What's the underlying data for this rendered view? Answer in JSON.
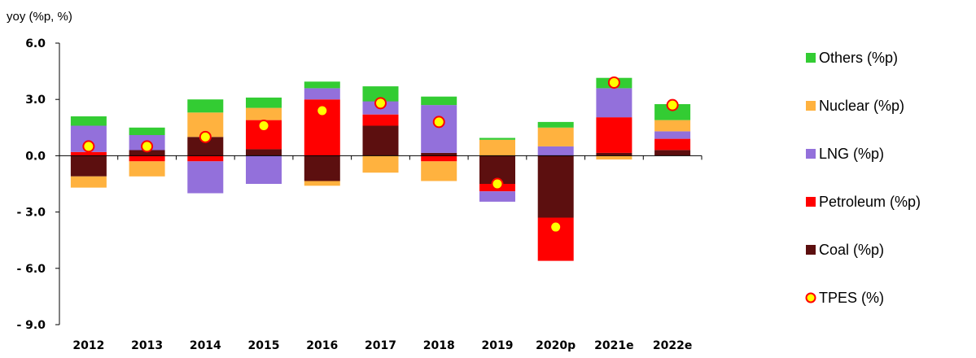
{
  "chart_data": {
    "type": "bar",
    "stacked": true,
    "ylabel": "yoy (%p, %)",
    "ylim": [
      -9.0,
      6.0
    ],
    "yticks": [
      "6.0",
      "3.0",
      "0.0",
      "-3.0",
      "-6.0",
      "-9.0"
    ],
    "categories": [
      "2012",
      "2013",
      "2014",
      "2015",
      "2016",
      "2017",
      "2018",
      "2019",
      "2020p",
      "2021e",
      "2022e"
    ],
    "series": [
      {
        "name": "Coal (%p)",
        "color": "#5c0f0f",
        "values": [
          -1.1,
          0.3,
          1.0,
          0.35,
          -1.35,
          1.6,
          0.15,
          -1.5,
          -3.3,
          0.15,
          0.3
        ]
      },
      {
        "name": "Petroleum (%p)",
        "color": "#ff0000",
        "values": [
          0.2,
          -0.3,
          -0.3,
          1.55,
          3.0,
          0.6,
          -0.3,
          -0.4,
          -2.3,
          1.9,
          0.6
        ]
      },
      {
        "name": "LNG (%p)",
        "color": "#9370db",
        "values": [
          1.4,
          0.8,
          -1.7,
          -1.5,
          0.6,
          0.7,
          2.55,
          -0.55,
          0.5,
          1.55,
          0.4
        ]
      },
      {
        "name": "Nuclear (%p)",
        "color": "#ffb23f",
        "values": [
          -0.6,
          -0.8,
          1.3,
          0.65,
          -0.25,
          -0.9,
          -1.05,
          0.85,
          1.0,
          -0.2,
          0.6
        ]
      },
      {
        "name": "Others (%p)",
        "color": "#33cc33",
        "values": [
          0.5,
          0.4,
          0.7,
          0.55,
          0.35,
          0.8,
          0.45,
          0.1,
          0.3,
          0.55,
          0.85
        ]
      }
    ],
    "line_series": {
      "name": "TPES (%)",
      "marker": "circle",
      "fill": "#ffff00",
      "stroke": "#ff0000",
      "values": [
        0.5,
        0.5,
        1.0,
        1.6,
        2.4,
        2.8,
        1.8,
        -1.5,
        -3.8,
        3.9,
        2.7
      ]
    },
    "legend_order": [
      "Others (%p)",
      "Nuclear (%p)",
      "LNG (%p)",
      "Petroleum (%p)",
      "Coal (%p)",
      "TPES (%)"
    ],
    "legend_position": "right",
    "grid": false
  }
}
